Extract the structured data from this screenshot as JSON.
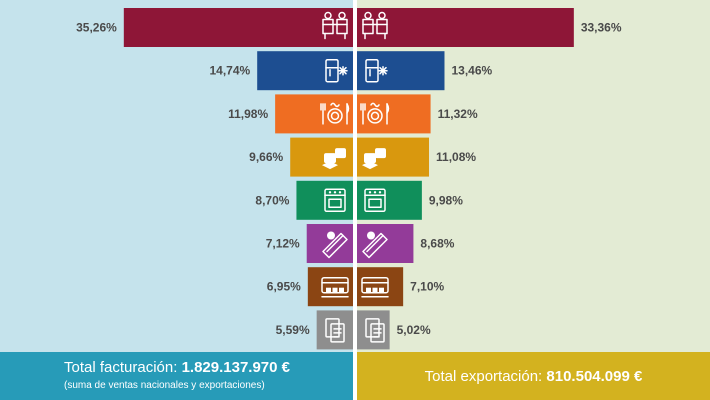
{
  "colors": {
    "left_bg": "#c5e3ec",
    "right_bg": "#e3ebd4",
    "left_footer": "#279bb8",
    "right_footer": "#d3b21f",
    "icon": "#ffffff"
  },
  "chart_data": {
    "type": "bar",
    "orientation": "horizontal-mirrored",
    "series": [
      {
        "values": [
          35.26,
          14.74,
          11.98,
          9.66,
          8.7,
          7.12,
          6.95,
          5.59
        ],
        "side": "left"
      },
      {
        "values": [
          33.36,
          13.46,
          11.32,
          11.08,
          9.98,
          8.68,
          7.1,
          5.02
        ],
        "side": "right"
      }
    ],
    "bars": [
      {
        "color": "#8e1637",
        "icon": "cooking-ranges-icon",
        "left_label": "35,26%",
        "right_label": "33,36%"
      },
      {
        "color": "#1d4e91",
        "icon": "refrigeration-icon",
        "left_label": "14,74%",
        "right_label": "13,46%"
      },
      {
        "color": "#ef6d22",
        "icon": "tableware-icon",
        "left_label": "11,98%",
        "right_label": "11,32%"
      },
      {
        "color": "#d9980e",
        "icon": "food-blocks-icon",
        "left_label": "9,66%",
        "right_label": "11,08%"
      },
      {
        "color": "#108f5b",
        "icon": "oven-icon",
        "left_label": "8,70%",
        "right_label": "9,98%"
      },
      {
        "color": "#933b99",
        "icon": "cleaning-icon",
        "left_label": "7,12%",
        "right_label": "8,68%"
      },
      {
        "color": "#8b4513",
        "icon": "coffee-machine-icon",
        "left_label": "6,95%",
        "right_label": "7,10%"
      },
      {
        "color": "#8e8e8e",
        "icon": "documents-icon",
        "left_label": "5,59%",
        "right_label": "5,02%"
      }
    ]
  },
  "footer": {
    "left": {
      "label": "Total facturación: ",
      "value": "1.829.137.970 €",
      "note": "(suma de ventas nacionales y exportaciones)"
    },
    "right": {
      "label": "Total exportación: ",
      "value": "810.504.099 €"
    }
  }
}
